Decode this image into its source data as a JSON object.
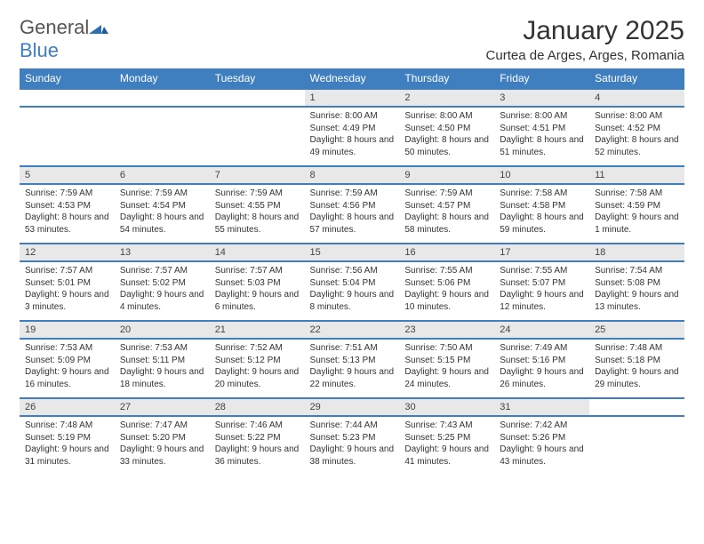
{
  "brand": {
    "general": "General",
    "blue": "Blue"
  },
  "title": "January 2025",
  "location": "Curtea de Arges, Arges, Romania",
  "colors": {
    "accent": "#3f7fbf",
    "header_bg": "#3f7fbf",
    "header_text": "#ffffff",
    "daynum_bg": "#e8e8e8",
    "rule": "#3f7fbf"
  },
  "weekdays": [
    "Sunday",
    "Monday",
    "Tuesday",
    "Wednesday",
    "Thursday",
    "Friday",
    "Saturday"
  ],
  "weeks": [
    {
      "nums": [
        "",
        "",
        "",
        "1",
        "2",
        "3",
        "4"
      ],
      "cells": [
        "",
        "",
        "",
        "Sunrise: 8:00 AM\nSunset: 4:49 PM\nDaylight: 8 hours and 49 minutes.",
        "Sunrise: 8:00 AM\nSunset: 4:50 PM\nDaylight: 8 hours and 50 minutes.",
        "Sunrise: 8:00 AM\nSunset: 4:51 PM\nDaylight: 8 hours and 51 minutes.",
        "Sunrise: 8:00 AM\nSunset: 4:52 PM\nDaylight: 8 hours and 52 minutes."
      ]
    },
    {
      "nums": [
        "5",
        "6",
        "7",
        "8",
        "9",
        "10",
        "11"
      ],
      "cells": [
        "Sunrise: 7:59 AM\nSunset: 4:53 PM\nDaylight: 8 hours and 53 minutes.",
        "Sunrise: 7:59 AM\nSunset: 4:54 PM\nDaylight: 8 hours and 54 minutes.",
        "Sunrise: 7:59 AM\nSunset: 4:55 PM\nDaylight: 8 hours and 55 minutes.",
        "Sunrise: 7:59 AM\nSunset: 4:56 PM\nDaylight: 8 hours and 57 minutes.",
        "Sunrise: 7:59 AM\nSunset: 4:57 PM\nDaylight: 8 hours and 58 minutes.",
        "Sunrise: 7:58 AM\nSunset: 4:58 PM\nDaylight: 8 hours and 59 minutes.",
        "Sunrise: 7:58 AM\nSunset: 4:59 PM\nDaylight: 9 hours and 1 minute."
      ]
    },
    {
      "nums": [
        "12",
        "13",
        "14",
        "15",
        "16",
        "17",
        "18"
      ],
      "cells": [
        "Sunrise: 7:57 AM\nSunset: 5:01 PM\nDaylight: 9 hours and 3 minutes.",
        "Sunrise: 7:57 AM\nSunset: 5:02 PM\nDaylight: 9 hours and 4 minutes.",
        "Sunrise: 7:57 AM\nSunset: 5:03 PM\nDaylight: 9 hours and 6 minutes.",
        "Sunrise: 7:56 AM\nSunset: 5:04 PM\nDaylight: 9 hours and 8 minutes.",
        "Sunrise: 7:55 AM\nSunset: 5:06 PM\nDaylight: 9 hours and 10 minutes.",
        "Sunrise: 7:55 AM\nSunset: 5:07 PM\nDaylight: 9 hours and 12 minutes.",
        "Sunrise: 7:54 AM\nSunset: 5:08 PM\nDaylight: 9 hours and 13 minutes."
      ]
    },
    {
      "nums": [
        "19",
        "20",
        "21",
        "22",
        "23",
        "24",
        "25"
      ],
      "cells": [
        "Sunrise: 7:53 AM\nSunset: 5:09 PM\nDaylight: 9 hours and 16 minutes.",
        "Sunrise: 7:53 AM\nSunset: 5:11 PM\nDaylight: 9 hours and 18 minutes.",
        "Sunrise: 7:52 AM\nSunset: 5:12 PM\nDaylight: 9 hours and 20 minutes.",
        "Sunrise: 7:51 AM\nSunset: 5:13 PM\nDaylight: 9 hours and 22 minutes.",
        "Sunrise: 7:50 AM\nSunset: 5:15 PM\nDaylight: 9 hours and 24 minutes.",
        "Sunrise: 7:49 AM\nSunset: 5:16 PM\nDaylight: 9 hours and 26 minutes.",
        "Sunrise: 7:48 AM\nSunset: 5:18 PM\nDaylight: 9 hours and 29 minutes."
      ]
    },
    {
      "nums": [
        "26",
        "27",
        "28",
        "29",
        "30",
        "31",
        ""
      ],
      "cells": [
        "Sunrise: 7:48 AM\nSunset: 5:19 PM\nDaylight: 9 hours and 31 minutes.",
        "Sunrise: 7:47 AM\nSunset: 5:20 PM\nDaylight: 9 hours and 33 minutes.",
        "Sunrise: 7:46 AM\nSunset: 5:22 PM\nDaylight: 9 hours and 36 minutes.",
        "Sunrise: 7:44 AM\nSunset: 5:23 PM\nDaylight: 9 hours and 38 minutes.",
        "Sunrise: 7:43 AM\nSunset: 5:25 PM\nDaylight: 9 hours and 41 minutes.",
        "Sunrise: 7:42 AM\nSunset: 5:26 PM\nDaylight: 9 hours and 43 minutes.",
        ""
      ]
    }
  ]
}
